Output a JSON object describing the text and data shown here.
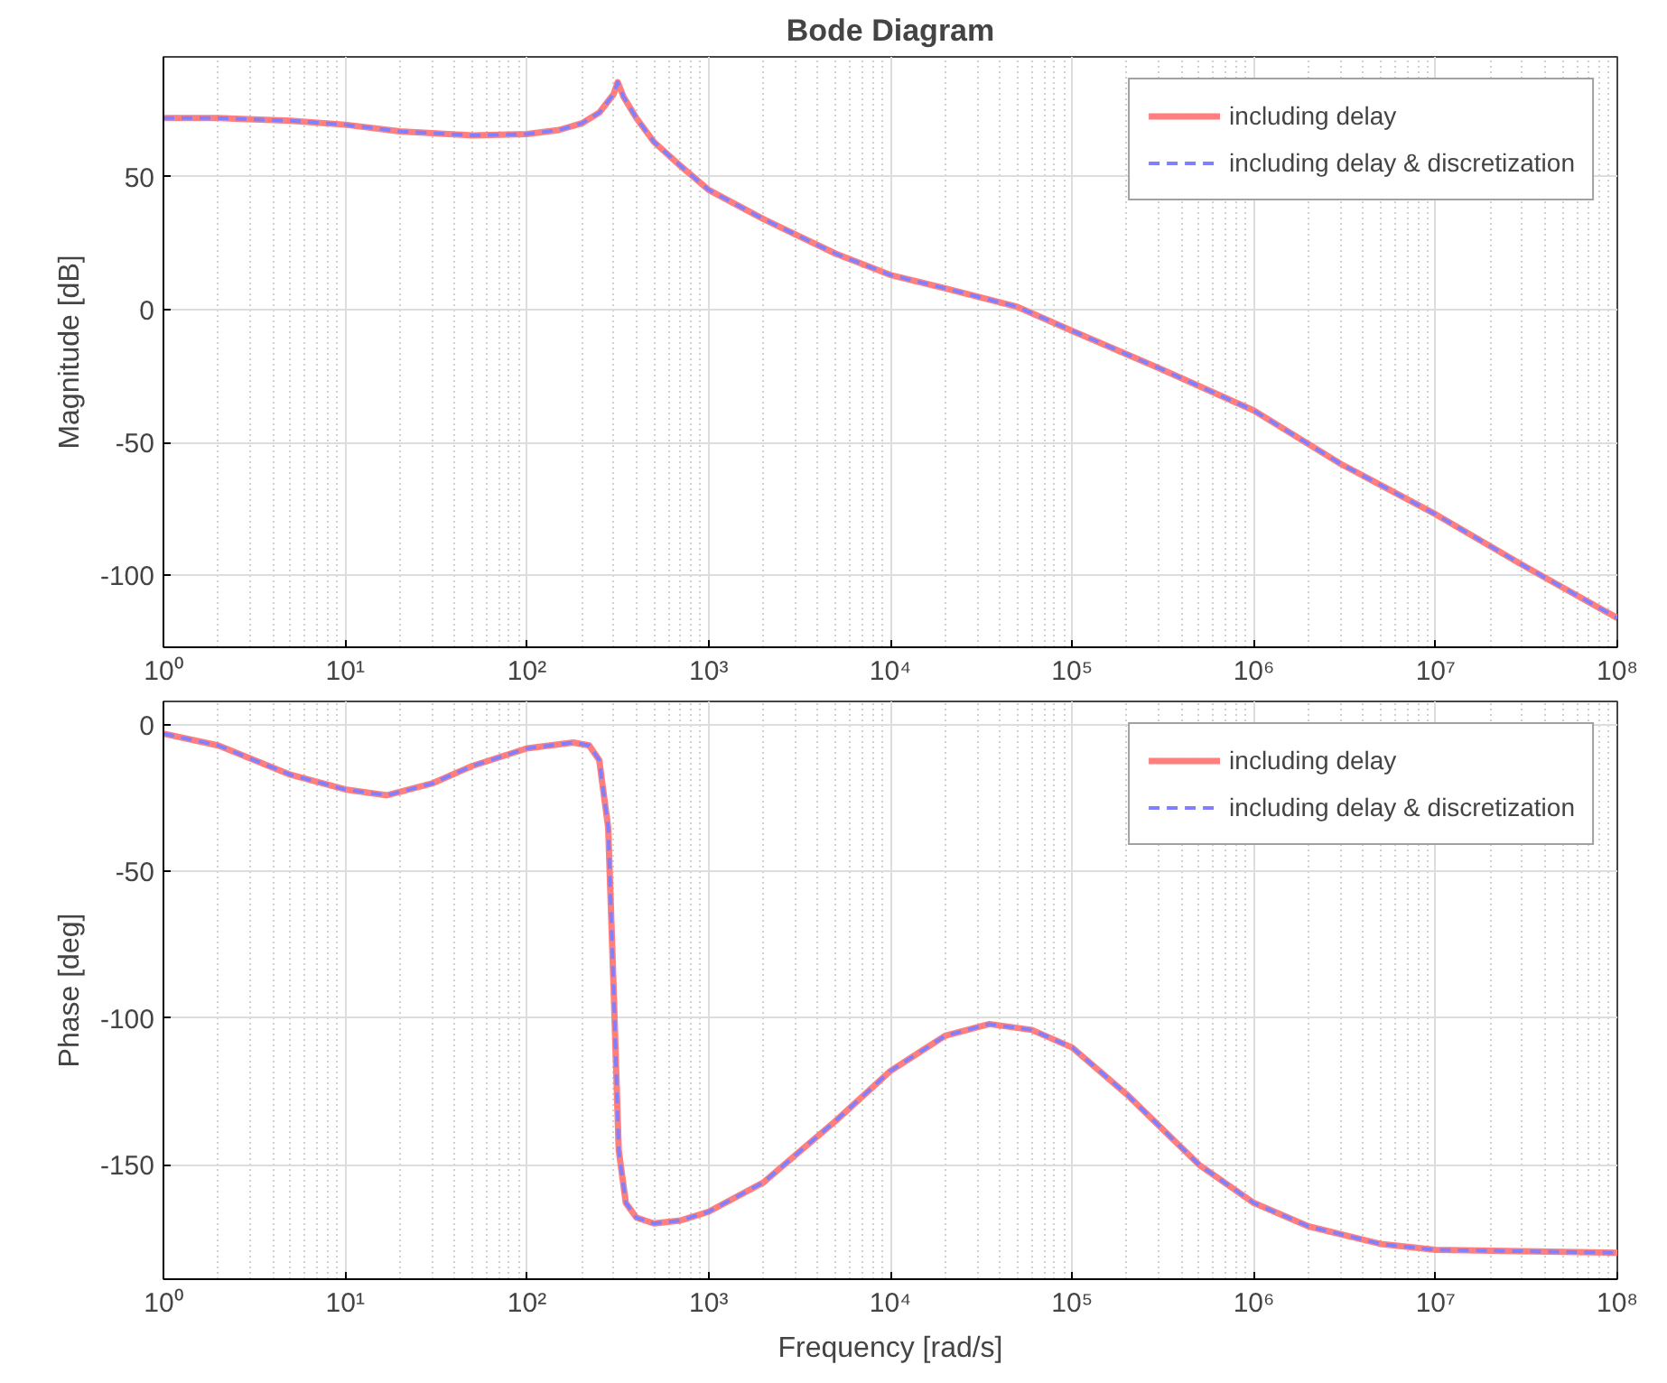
{
  "chart_data": [
    {
      "type": "line",
      "title": "Bode Diagram",
      "ylabel": "Magnitude [dB]",
      "log": "x",
      "grid": true,
      "legend": "top right",
      "x": [
        1,
        2,
        5,
        10,
        20,
        50,
        100,
        150,
        200,
        250,
        300,
        316,
        340,
        400,
        500,
        700,
        1000,
        2000,
        5000,
        10000,
        20000,
        50000,
        100000,
        300000,
        1000000,
        3000000,
        10000000,
        30000000,
        100000000
      ],
      "xlim": [
        1,
        100000000
      ],
      "xticks": [
        {
          "value": 1,
          "label": "10⁰"
        },
        {
          "value": 10,
          "label": "10¹"
        },
        {
          "value": 100,
          "label": "10²"
        },
        {
          "value": 1000,
          "label": "10³"
        },
        {
          "value": 10000,
          "label": "10⁴"
        },
        {
          "value": 100000,
          "label": "10⁵"
        },
        {
          "value": 1000000,
          "label": "10⁶"
        },
        {
          "value": 10000000,
          "label": "10⁷"
        },
        {
          "value": 100000000,
          "label": "10⁸"
        }
      ],
      "ylim": [
        -127,
        95
      ],
      "yticks": [
        -100,
        -50,
        0,
        50
      ],
      "series": [
        {
          "name": "including delay",
          "color": "#ff7f7f",
          "line_style": "solid",
          "values": [
            72,
            72,
            71,
            69.5,
            67,
            65.5,
            66,
            67.5,
            70,
            74,
            81,
            85.5,
            80,
            72,
            63,
            54,
            45,
            34,
            21,
            13,
            8,
            1,
            -8,
            -22,
            -38,
            -58,
            -77,
            -96,
            -116
          ]
        },
        {
          "name": "including delay & discretization",
          "color": "#7f7fff",
          "line_style": "dashed",
          "values": [
            72,
            72,
            71,
            69.5,
            67,
            65.5,
            66,
            67.5,
            70,
            74,
            81,
            85.5,
            80,
            72,
            63,
            54,
            45,
            34,
            21,
            13,
            8,
            1,
            -8,
            -22,
            -38,
            -58,
            -77,
            -96,
            -116
          ]
        }
      ]
    },
    {
      "type": "line",
      "xlabel": "Frequency [rad/s]",
      "ylabel": "Phase [deg]",
      "log": "x",
      "grid": true,
      "legend": "top right",
      "x": [
        1,
        2,
        5,
        10,
        17,
        30,
        50,
        100,
        180,
        220,
        250,
        280,
        300,
        320,
        350,
        400,
        500,
        700,
        1000,
        2000,
        5000,
        10000,
        20000,
        35000,
        60000,
        100000,
        200000,
        500000,
        1000000,
        2000000,
        5000000,
        10000000,
        100000000
      ],
      "xlim": [
        1,
        100000000
      ],
      "xticks": [
        {
          "value": 1,
          "label": "10⁰"
        },
        {
          "value": 10,
          "label": "10¹"
        },
        {
          "value": 100,
          "label": "10²"
        },
        {
          "value": 1000,
          "label": "10³"
        },
        {
          "value": 10000,
          "label": "10⁴"
        },
        {
          "value": 100000,
          "label": "10⁵"
        },
        {
          "value": 1000000,
          "label": "10⁶"
        },
        {
          "value": 10000000,
          "label": "10⁷"
        },
        {
          "value": 100000000,
          "label": "10⁸"
        }
      ],
      "ylim": [
        -189,
        8
      ],
      "yticks": [
        -150,
        -100,
        -50,
        0
      ],
      "series": [
        {
          "name": "including delay",
          "color": "#ff7f7f",
          "line_style": "solid",
          "values": [
            -3,
            -7,
            -17,
            -22,
            -24,
            -20,
            -14,
            -8,
            -6,
            -7,
            -12,
            -35,
            -90,
            -145,
            -163,
            -168,
            -170,
            -169,
            -166,
            -156,
            -135,
            -118,
            -106,
            -102,
            -104,
            -110,
            -126,
            -150,
            -163,
            -171,
            -177,
            -179,
            -180
          ]
        },
        {
          "name": "including delay & discretization",
          "color": "#7f7fff",
          "line_style": "dashed",
          "values": [
            -3,
            -7,
            -17,
            -22,
            -24,
            -20,
            -14,
            -8,
            -6,
            -7,
            -12,
            -35,
            -90,
            -145,
            -163,
            -168,
            -170,
            -169,
            -166,
            -156,
            -135,
            -118,
            -106,
            -102,
            -104,
            -110,
            -126,
            -150,
            -163,
            -171,
            -177,
            -179,
            -180
          ]
        }
      ]
    }
  ]
}
